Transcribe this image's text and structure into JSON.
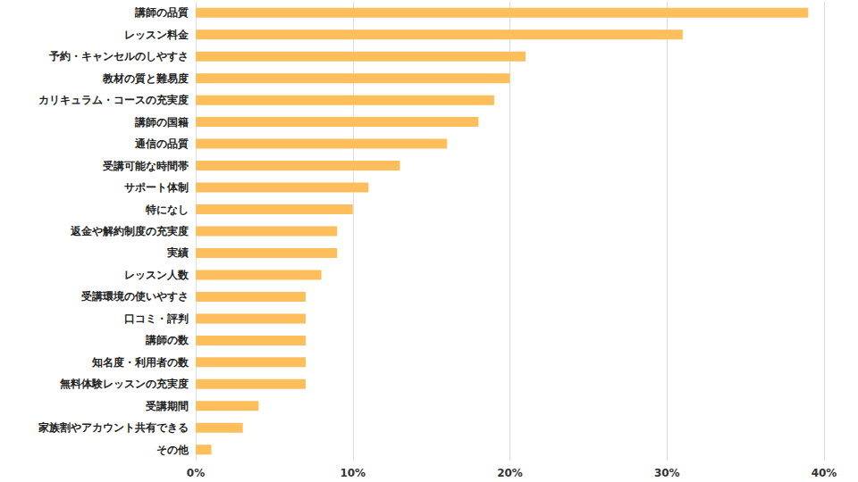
{
  "chart_data": {
    "type": "bar",
    "orientation": "horizontal",
    "categories": [
      "講師の品質",
      "レッスン料金",
      "予約・キャンセルのしやすさ",
      "教材の質と難易度",
      "カリキュラム・コースの充実度",
      "講師の国籍",
      "通信の品質",
      "受講可能な時間帯",
      "サポート体制",
      "特になし",
      "返金や解約制度の充実度",
      "実績",
      "レッスン人数",
      "受講環境の使いやすさ",
      "口コミ・評判",
      "講師の数",
      "知名度・利用者の数",
      "無料体験レッスンの充実度",
      "受講期間",
      "家族割やアカウント共有できる",
      "その他"
    ],
    "values": [
      39,
      31,
      21,
      20,
      19,
      18,
      16,
      13,
      11,
      10,
      9,
      9,
      8,
      7,
      7,
      7,
      7,
      7,
      4,
      3,
      1
    ],
    "color": "#ffbe5c",
    "xlim": [
      0,
      40
    ],
    "xticks": [
      {
        "value": 0,
        "label": "0%"
      },
      {
        "value": 10,
        "label": "10%"
      },
      {
        "value": 20,
        "label": "20%"
      },
      {
        "value": 30,
        "label": "30%"
      },
      {
        "value": 40,
        "label": "40%"
      }
    ],
    "grid": true
  }
}
